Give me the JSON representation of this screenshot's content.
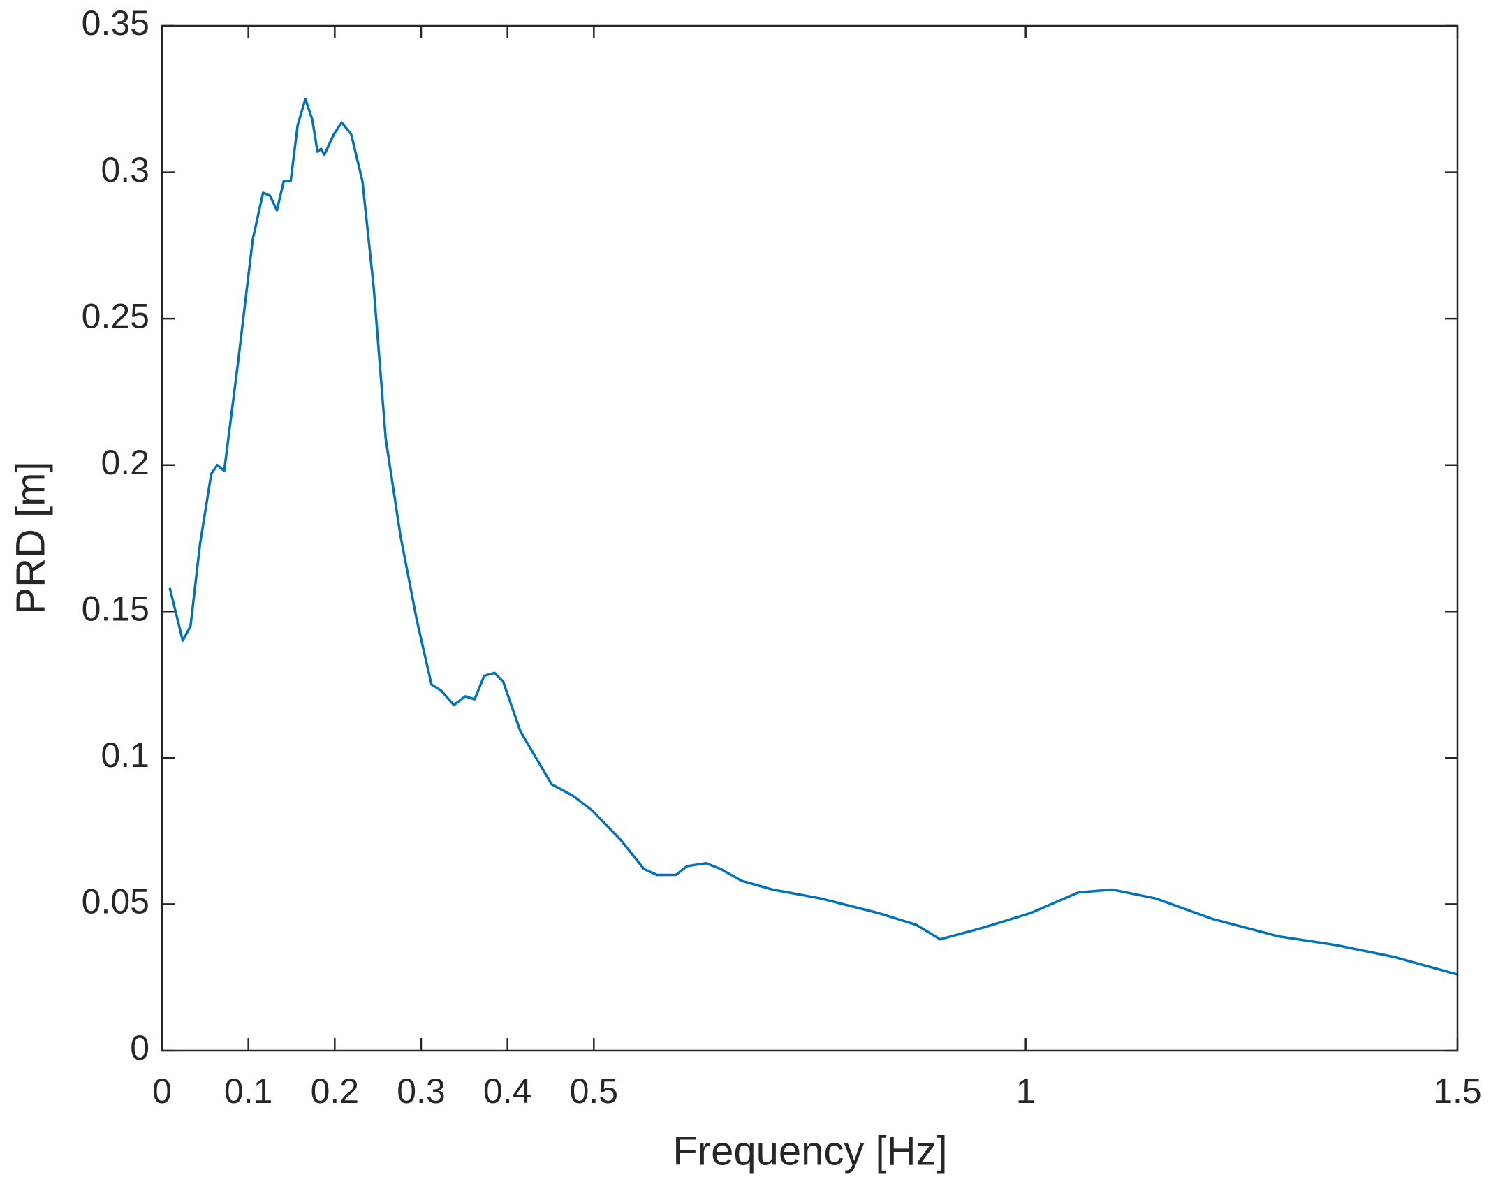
{
  "chart_data": {
    "type": "line",
    "xlabel": "Frequency [Hz]",
    "ylabel": "PRD [m]",
    "xlim": [
      0,
      1.5
    ],
    "xticks": [
      0,
      0.1,
      0.2,
      0.3,
      0.4,
      0.5,
      1,
      1.5
    ],
    "ylim": [
      0,
      0.35
    ],
    "yticks": [
      0,
      0.05,
      0.1,
      0.15,
      0.2,
      0.25,
      0.3,
      0.35
    ],
    "grid": false,
    "x": [
      0.009,
      0.024,
      0.033,
      0.044,
      0.057,
      0.064,
      0.072,
      0.088,
      0.105,
      0.117,
      0.125,
      0.133,
      0.141,
      0.149,
      0.157,
      0.166,
      0.174,
      0.18,
      0.184,
      0.188,
      0.199,
      0.208,
      0.219,
      0.232,
      0.245,
      0.259,
      0.276,
      0.295,
      0.312,
      0.323,
      0.338,
      0.351,
      0.362,
      0.373,
      0.385,
      0.395,
      0.415,
      0.431,
      0.451,
      0.476,
      0.498,
      0.531,
      0.558,
      0.573,
      0.595,
      0.608,
      0.63,
      0.647,
      0.671,
      0.707,
      0.762,
      0.829,
      0.873,
      0.901,
      0.951,
      1.006,
      1.061,
      1.1,
      1.15,
      1.216,
      1.293,
      1.36,
      1.426,
      1.5
    ],
    "series": [
      {
        "name": "PRD",
        "color": "#0072bd",
        "values": [
          0.158,
          0.14,
          0.145,
          0.173,
          0.197,
          0.2,
          0.198,
          0.235,
          0.277,
          0.293,
          0.292,
          0.287,
          0.297,
          0.297,
          0.316,
          0.325,
          0.318,
          0.307,
          0.308,
          0.306,
          0.313,
          0.317,
          0.313,
          0.297,
          0.261,
          0.209,
          0.176,
          0.147,
          0.125,
          0.123,
          0.118,
          0.121,
          0.12,
          0.128,
          0.129,
          0.126,
          0.109,
          0.101,
          0.091,
          0.087,
          0.082,
          0.072,
          0.062,
          0.06,
          0.06,
          0.063,
          0.064,
          0.062,
          0.058,
          0.055,
          0.052,
          0.047,
          0.043,
          0.038,
          0.042,
          0.047,
          0.054,
          0.055,
          0.052,
          0.045,
          0.039,
          0.036,
          0.032,
          0.026
        ]
      }
    ]
  }
}
